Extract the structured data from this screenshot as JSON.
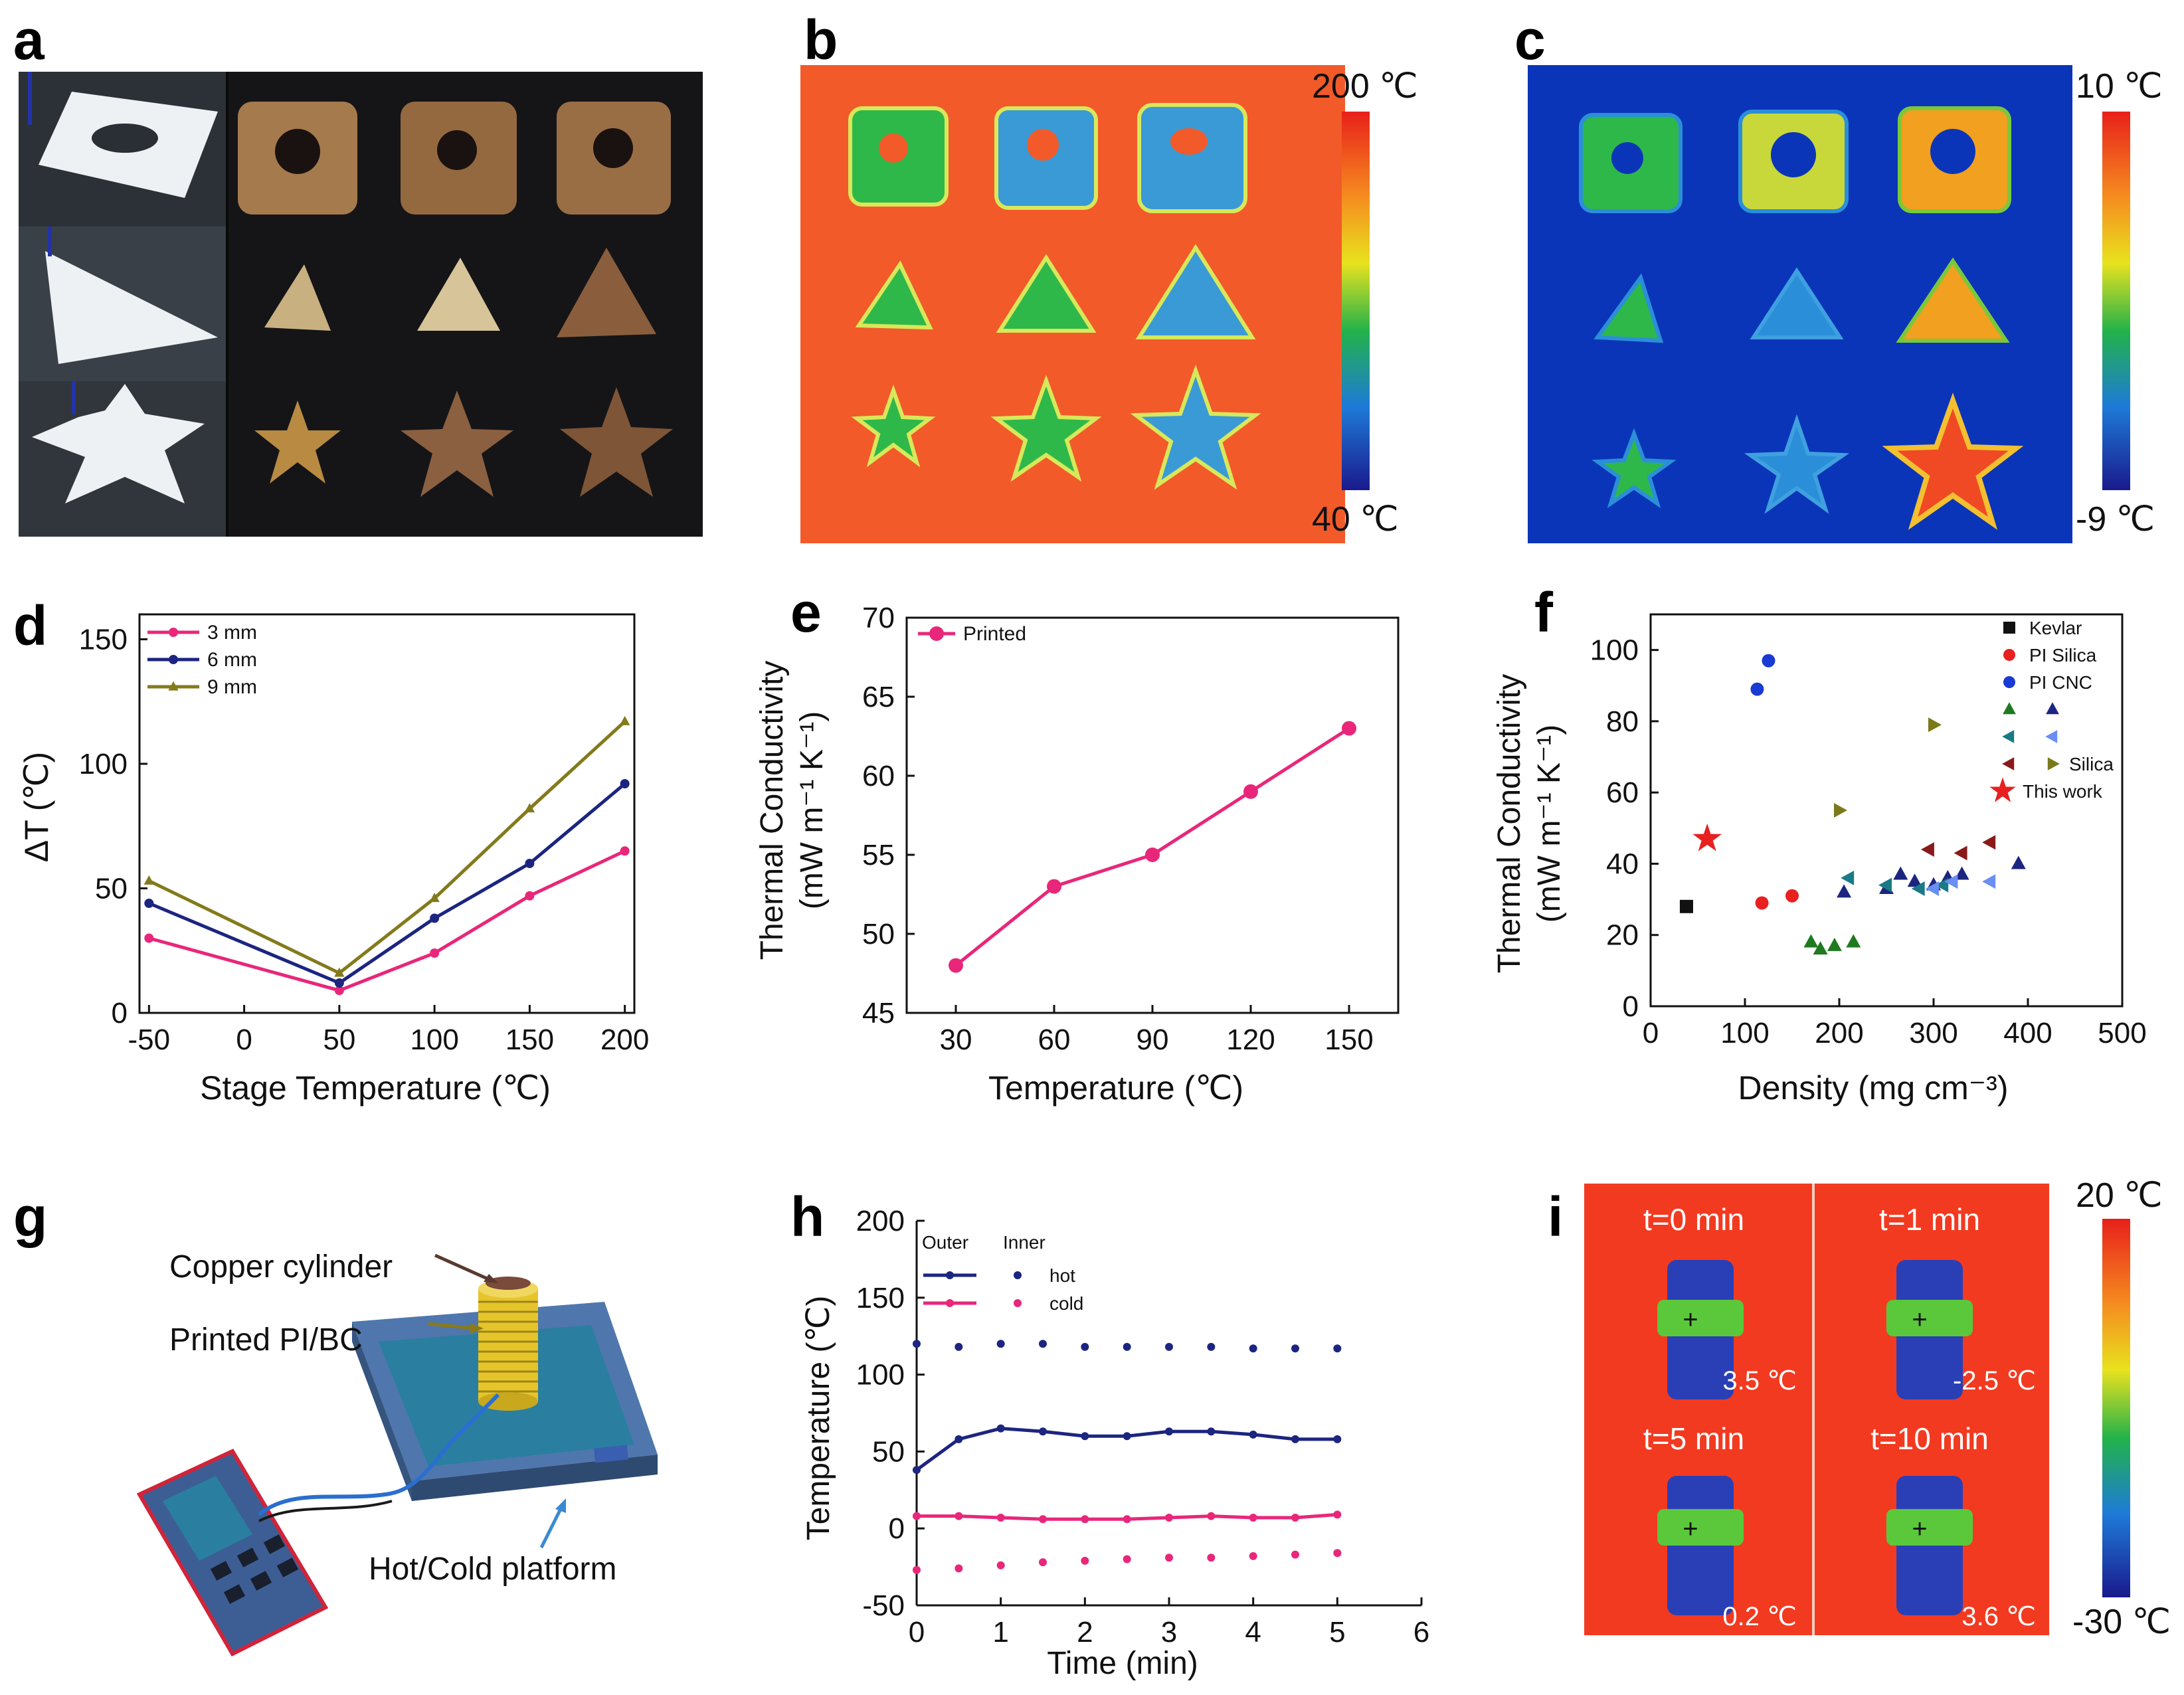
{
  "panel_labels": {
    "a": "a",
    "b": "b",
    "c": "c",
    "d": "d",
    "e": "e",
    "f": "f",
    "g": "g",
    "h": "h",
    "i": "i"
  },
  "photo_panel": {
    "description_shapes": [
      "square-with-hole",
      "triangle",
      "star"
    ],
    "colors": {
      "printed_white": "#f0f2f4",
      "dried_brown": "#a57a4d",
      "dried_tan": "#c8a878",
      "background": "#151518"
    }
  },
  "thermal_b": {
    "scale_max": "200 ℃",
    "scale_min": "40 ℃",
    "colors": {
      "background": "#f25a2a",
      "cool": "#2fb84a",
      "cooler": "#3a9ad6"
    }
  },
  "thermal_c": {
    "scale_max": "10 ℃",
    "scale_min": "-9 ℃",
    "colors": {
      "background": "#0b35b8",
      "warm": "#f2a020",
      "hot": "#f04a25"
    }
  },
  "schematic_g": {
    "label_copper": "Copper cylinder",
    "label_printed": "Printed PI/BC",
    "label_platform": "Hot/Cold platform",
    "colors": {
      "copper": "#7a4a3a",
      "yellow": "#e6c52b",
      "platform": "#7fa3cf",
      "device": "#3d5e94",
      "device_border": "#d0243a"
    }
  },
  "thermal_i": {
    "scale_max": "20 ℃",
    "scale_min": "-30 ℃",
    "frames": [
      {
        "time": "t=0 min",
        "reading": "3.5 ℃"
      },
      {
        "time": "t=1 min",
        "reading": "-2.5 ℃"
      },
      {
        "time": "t=5 min",
        "reading": "0.2 ℃"
      },
      {
        "time": "t=10 min",
        "reading": "3.6 ℃"
      }
    ],
    "crosshair": "+",
    "colors": {
      "background": "#f23a20",
      "object": "#2a3fb5",
      "band": "#5ac83a"
    }
  },
  "chart_data": [
    {
      "id": "d",
      "type": "line",
      "title": "",
      "xlabel": "Stage Temperature (℃)",
      "ylabel": "ΔT (℃)",
      "x": [
        -50,
        50,
        100,
        150,
        200
      ],
      "xticks": [
        -50,
        0,
        50,
        100,
        150,
        200
      ],
      "xtick_labels": [
        "-50",
        "0",
        "50",
        "100",
        "150",
        "200"
      ],
      "yticks": [
        0,
        50,
        100,
        150
      ],
      "ytick_labels": [
        "0",
        "50",
        "100",
        "150"
      ],
      "xlim": [
        -55,
        205
      ],
      "ylim": [
        0,
        160
      ],
      "series": [
        {
          "name": "3 mm",
          "values": [
            30,
            9,
            24,
            47,
            65
          ],
          "color": "#e8277a",
          "marker": "circle"
        },
        {
          "name": "6 mm",
          "values": [
            44,
            12,
            38,
            60,
            92
          ],
          "color": "#1c2580",
          "marker": "circle"
        },
        {
          "name": "9 mm",
          "values": [
            53,
            16,
            46,
            82,
            117
          ],
          "color": "#837a1c",
          "marker": "triangle"
        }
      ],
      "legend": "top-left"
    },
    {
      "id": "e",
      "type": "line",
      "title": "",
      "xlabel": "Temperature (℃)",
      "ylabel_line1": "Thermal Conductivity",
      "ylabel_line2": "(mW m⁻¹ K⁻¹)",
      "x": [
        30,
        60,
        90,
        120,
        150
      ],
      "xticks": [
        30,
        60,
        90,
        120,
        150
      ],
      "xtick_labels": [
        "30",
        "60",
        "90",
        "120",
        "150"
      ],
      "yticks": [
        45,
        50,
        55,
        60,
        65,
        70
      ],
      "ytick_labels": [
        "45",
        "50",
        "55",
        "60",
        "65",
        "70"
      ],
      "xlim": [
        15,
        165
      ],
      "ylim": [
        45,
        70
      ],
      "series": [
        {
          "name": "Printed",
          "values": [
            48,
            53,
            55,
            59,
            63
          ],
          "color": "#e8277a",
          "marker": "circle"
        }
      ],
      "legend": "top-left"
    },
    {
      "id": "f",
      "type": "scatter",
      "title": "",
      "xlabel": "Density (mg cm⁻³)",
      "ylabel_line1": "Thermal Conductivity",
      "ylabel_line2": "(mW m⁻¹ K⁻¹)",
      "xticks": [
        0,
        100,
        200,
        300,
        400,
        500
      ],
      "xtick_labels": [
        "0",
        "100",
        "200",
        "300",
        "400",
        "500"
      ],
      "yticks": [
        0,
        20,
        40,
        60,
        80,
        100
      ],
      "ytick_labels": [
        "0",
        "20",
        "40",
        "60",
        "80",
        "100"
      ],
      "xlim": [
        0,
        500
      ],
      "ylim": [
        0,
        110
      ],
      "series": [
        {
          "name": "Kevlar",
          "marker": "square",
          "color": "#111111",
          "points": [
            [
              38,
              28
            ]
          ]
        },
        {
          "name": "PI Silica",
          "marker": "circle",
          "color": "#e82020",
          "points": [
            [
              118,
              29
            ],
            [
              150,
              31
            ]
          ]
        },
        {
          "name": "PI CNC",
          "marker": "circle",
          "color": "#1a3ad4",
          "points": [
            [
              113,
              89
            ],
            [
              125,
              97
            ]
          ]
        },
        {
          "name": "",
          "marker": "triangle-up",
          "color": "#1f7a1f",
          "points": [
            [
              170,
              18
            ],
            [
              180,
              16
            ],
            [
              195,
              17
            ],
            [
              215,
              18
            ]
          ]
        },
        {
          "name": "",
          "marker": "triangle-up",
          "color": "#1c2580",
          "points": [
            [
              205,
              32
            ],
            [
              250,
              33
            ],
            [
              265,
              37
            ],
            [
              280,
              35
            ],
            [
              300,
              34
            ],
            [
              315,
              36
            ],
            [
              330,
              37
            ],
            [
              390,
              40
            ]
          ]
        },
        {
          "name": "",
          "marker": "triangle-left",
          "color": "#1a7a86",
          "points": [
            [
              210,
              36
            ],
            [
              250,
              34
            ],
            [
              285,
              33
            ],
            [
              310,
              34
            ]
          ]
        },
        {
          "name": "",
          "marker": "triangle-left",
          "color": "#6a8ff2",
          "points": [
            [
              300,
              33
            ],
            [
              320,
              35
            ],
            [
              360,
              35
            ]
          ]
        },
        {
          "name": "",
          "marker": "triangle-left",
          "color": "#8a1a1a",
          "points": [
            [
              295,
              44
            ],
            [
              330,
              43
            ],
            [
              360,
              46
            ]
          ]
        },
        {
          "name": "Silica",
          "marker": "triangle-right",
          "color": "#7a7a1a",
          "points": [
            [
              200,
              55
            ],
            [
              300,
              79
            ]
          ]
        },
        {
          "name": "This work",
          "marker": "star",
          "color": "#e82020",
          "points": [
            [
              60,
              47
            ]
          ]
        }
      ],
      "legend_entries": [
        "Kevlar",
        "PI Silica",
        "PI CNC",
        "Silica",
        "This work"
      ],
      "legend": "top-right"
    },
    {
      "id": "h",
      "type": "line",
      "title": "",
      "xlabel": "Time (min)",
      "ylabel": "Temperature (℃)",
      "xticks": [
        0,
        1,
        2,
        3,
        4,
        5,
        6
      ],
      "xtick_labels": [
        "0",
        "1",
        "2",
        "3",
        "4",
        "5",
        "6"
      ],
      "yticks": [
        -50,
        0,
        50,
        100,
        150,
        200
      ],
      "ytick_labels": [
        "-50",
        "0",
        "50",
        "100",
        "150",
        "200"
      ],
      "xlim": [
        0,
        6
      ],
      "ylim": [
        -50,
        200
      ],
      "legend_header_outer": "Outer",
      "legend_header_inner": "Inner",
      "legend_hot": "hot",
      "legend_cold": "cold",
      "series": [
        {
          "name": "hot outer",
          "style": "line",
          "color": "#1c2580",
          "x": [
            0,
            0.5,
            1,
            1.5,
            2,
            2.5,
            3,
            3.5,
            4,
            4.5,
            5
          ],
          "values": [
            38,
            58,
            65,
            63,
            60,
            60,
            63,
            63,
            61,
            58,
            58
          ]
        },
        {
          "name": "hot inner",
          "style": "dots",
          "color": "#1c2580",
          "x": [
            0,
            0.5,
            1,
            1.5,
            2,
            2.5,
            3,
            3.5,
            4,
            4.5,
            5
          ],
          "values": [
            120,
            118,
            120,
            120,
            118,
            118,
            118,
            118,
            117,
            117,
            117
          ]
        },
        {
          "name": "cold outer",
          "style": "line",
          "color": "#e8277a",
          "x": [
            0,
            0.5,
            1,
            1.5,
            2,
            2.5,
            3,
            3.5,
            4,
            4.5,
            5
          ],
          "values": [
            8,
            8,
            7,
            6,
            6,
            6,
            7,
            8,
            7,
            7,
            9
          ]
        },
        {
          "name": "cold inner",
          "style": "dots",
          "color": "#e8277a",
          "x": [
            0,
            0.5,
            1,
            1.5,
            2,
            2.5,
            3,
            3.5,
            4,
            4.5,
            5
          ],
          "values": [
            -27,
            -26,
            -24,
            -22,
            -21,
            -20,
            -19,
            -19,
            -18,
            -17,
            -16
          ]
        }
      ],
      "legend": "top-left"
    }
  ]
}
